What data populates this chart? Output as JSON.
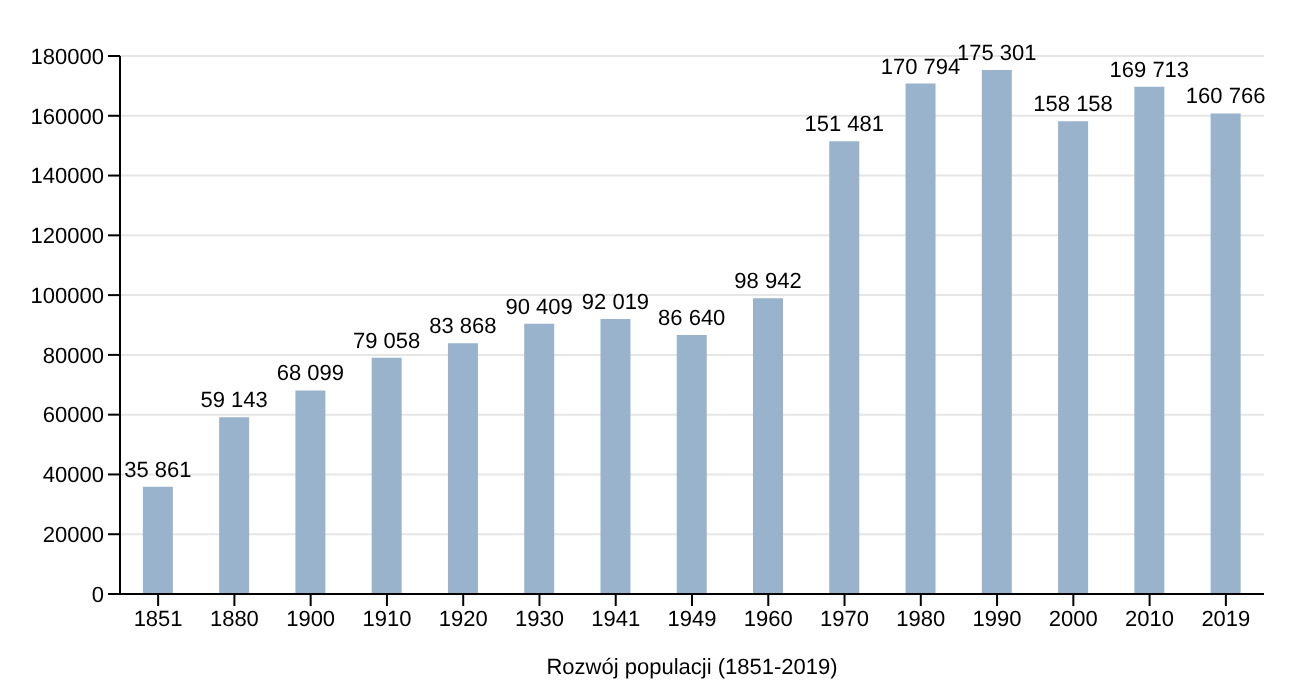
{
  "chart_data": {
    "type": "bar",
    "xlabel": "Rozwój populacji (1851-2019)",
    "categories": [
      "1851",
      "1880",
      "1900",
      "1910",
      "1920",
      "1930",
      "1941",
      "1949",
      "1960",
      "1970",
      "1980",
      "1990",
      "2000",
      "2010",
      "2019"
    ],
    "values": [
      35861,
      59143,
      68099,
      79058,
      83868,
      90409,
      92019,
      86640,
      98942,
      151481,
      170794,
      175301,
      158158,
      169713,
      160766
    ],
    "value_labels": [
      "35 861",
      "59 143",
      "68 099",
      "79 058",
      "83 868",
      "90 409",
      "92 019",
      "86 640",
      "98 942",
      "151 481",
      "170 794",
      "175 301",
      "158 158",
      "169 713",
      "160 766"
    ],
    "color": "#99b3cc",
    "ylim": [
      0,
      180000
    ],
    "yticks": [
      0,
      20000,
      40000,
      60000,
      80000,
      100000,
      120000,
      140000,
      160000,
      180000
    ],
    "grid": "y"
  }
}
